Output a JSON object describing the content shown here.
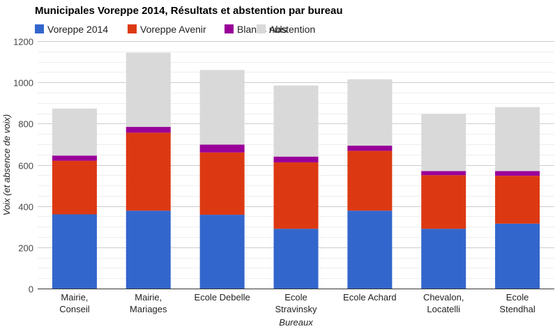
{
  "chart_data": {
    "type": "bar",
    "stacked": true,
    "title": "Municipales Voreppe 2014, Résultats et abstention par bureau",
    "xlabel": "Bureaux",
    "ylabel": "Voix (et absence de voix)",
    "ylim": [
      0,
      1200
    ],
    "yticks": [
      0,
      200,
      400,
      600,
      800,
      1000,
      1200
    ],
    "grid": true,
    "legend_position": "top-left",
    "categories": [
      [
        "Mairie,",
        "Conseil"
      ],
      [
        "Mairie,",
        "Mariages"
      ],
      [
        "Ecole Debelle"
      ],
      [
        "Ecole",
        "Stravinsky"
      ],
      [
        "Ecole Achard"
      ],
      [
        "Chevalon,",
        "Locatelli"
      ],
      [
        "Ecole",
        "Stendhal"
      ]
    ],
    "series": [
      {
        "name": "Voreppe 2014",
        "color": "#3366cc",
        "values": [
          360,
          378,
          358,
          290,
          378,
          290,
          315
        ]
      },
      {
        "name": "Voreppe Avenir",
        "color": "#dc3912",
        "values": [
          260,
          378,
          302,
          322,
          290,
          260,
          232
        ]
      },
      {
        "name": "Blancs nuls",
        "color": "#990099",
        "values": [
          25,
          28,
          38,
          28,
          25,
          20,
          23
        ]
      },
      {
        "name": "Abstention",
        "color": "#d9d9d9",
        "values": [
          228,
          360,
          362,
          345,
          322,
          277,
          310
        ]
      }
    ]
  }
}
